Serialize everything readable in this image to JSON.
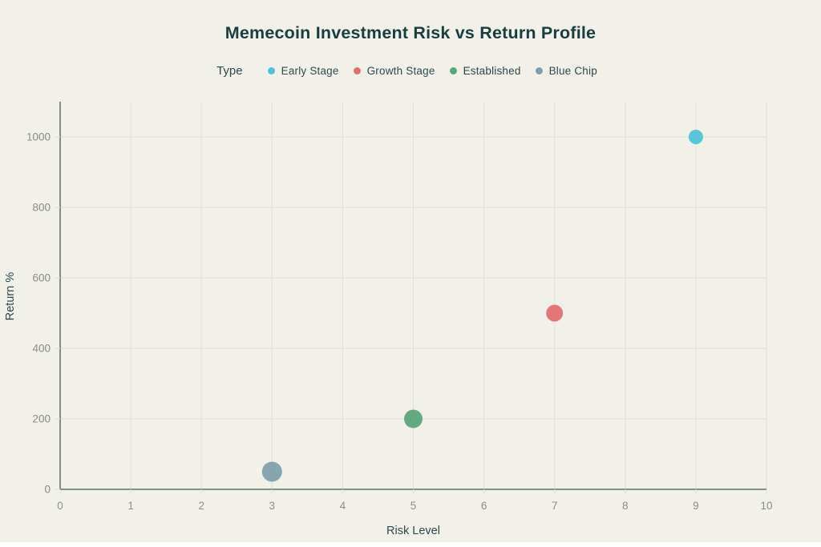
{
  "title": "Memecoin Investment Risk vs Return Profile",
  "legend": {
    "label": "Type",
    "items": [
      {
        "label": "Early Stage",
        "color": "#4fc3d6"
      },
      {
        "label": "Growth Stage",
        "color": "#e07070"
      },
      {
        "label": "Established",
        "color": "#5da47b"
      },
      {
        "label": "Blue Chip",
        "color": "#7fa0ab"
      }
    ]
  },
  "chart_data": {
    "type": "scatter",
    "title": "Memecoin Investment Risk vs Return Profile",
    "xlabel": "Risk Level",
    "ylabel": "Return %",
    "xlim": [
      0,
      10
    ],
    "ylim": [
      0,
      1100
    ],
    "x_ticks": [
      0,
      1,
      2,
      3,
      4,
      5,
      6,
      7,
      8,
      9,
      10
    ],
    "y_ticks": [
      0,
      200,
      400,
      600,
      800,
      1000
    ],
    "grid": true,
    "legend_position": "top",
    "series": [
      {
        "name": "Early Stage",
        "color": "#4fc3d6",
        "points": [
          {
            "x": 9,
            "y": 1000,
            "r": 9
          }
        ]
      },
      {
        "name": "Growth Stage",
        "color": "#e07070",
        "points": [
          {
            "x": 7,
            "y": 500,
            "r": 10.5
          }
        ]
      },
      {
        "name": "Established",
        "color": "#5da47b",
        "points": [
          {
            "x": 5,
            "y": 200,
            "r": 11.5
          }
        ]
      },
      {
        "name": "Blue Chip",
        "color": "#7fa0ab",
        "points": [
          {
            "x": 3,
            "y": 50,
            "r": 12.5
          }
        ]
      }
    ]
  },
  "colors": {
    "background": "#f1f0e9",
    "title_text": "#1c3d40",
    "label_text": "#2e4a4d",
    "tick_text": "#8e8e88",
    "axis_line": "#5c7070",
    "gridline": "#e1e0d6"
  }
}
